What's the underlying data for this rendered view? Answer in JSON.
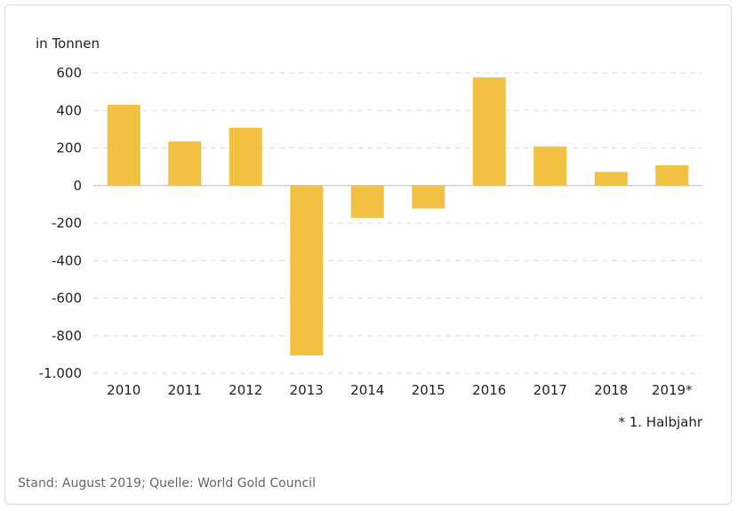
{
  "chart_data": {
    "type": "bar",
    "ylabel": "in Tonnen",
    "categories": [
      "2010",
      "2011",
      "2012",
      "2013",
      "2014",
      "2015",
      "2016",
      "2017",
      "2018",
      "2019*"
    ],
    "values": [
      430,
      235,
      308,
      -905,
      -172,
      -122,
      576,
      208,
      72,
      108
    ],
    "ylim": [
      -1000,
      600
    ],
    "yticks": [
      600,
      400,
      200,
      0,
      -200,
      -400,
      -600,
      -800,
      -1000
    ],
    "ytick_labels": [
      "600",
      "400",
      "200",
      "0",
      "-200",
      "-400",
      "-600",
      "-800",
      "-1.000"
    ],
    "grid": true,
    "bar_color": "#f2c142"
  },
  "footnote": "* 1. Halbjahr",
  "source": "Stand: August 2019; Quelle: World Gold Council"
}
